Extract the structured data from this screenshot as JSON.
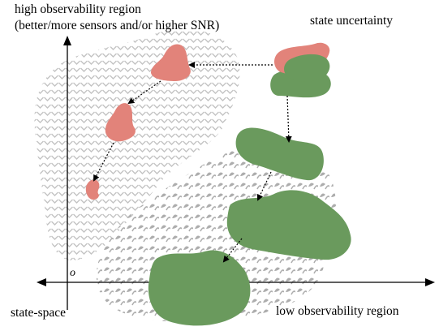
{
  "labels": {
    "high_region": "high observability region",
    "high_region_detail": "(better/more sensors and/or higher SNR)",
    "state_uncertainty": "state uncertainty",
    "state_space": "state-space",
    "low_region": "low observability region",
    "origin": "o"
  },
  "colors": {
    "red_blob": "#e2837a",
    "green_blob": "#6a9a5d",
    "high_pattern": "#bdbdbd",
    "low_pattern": "#a8a8a8",
    "axis": "#000000"
  }
}
